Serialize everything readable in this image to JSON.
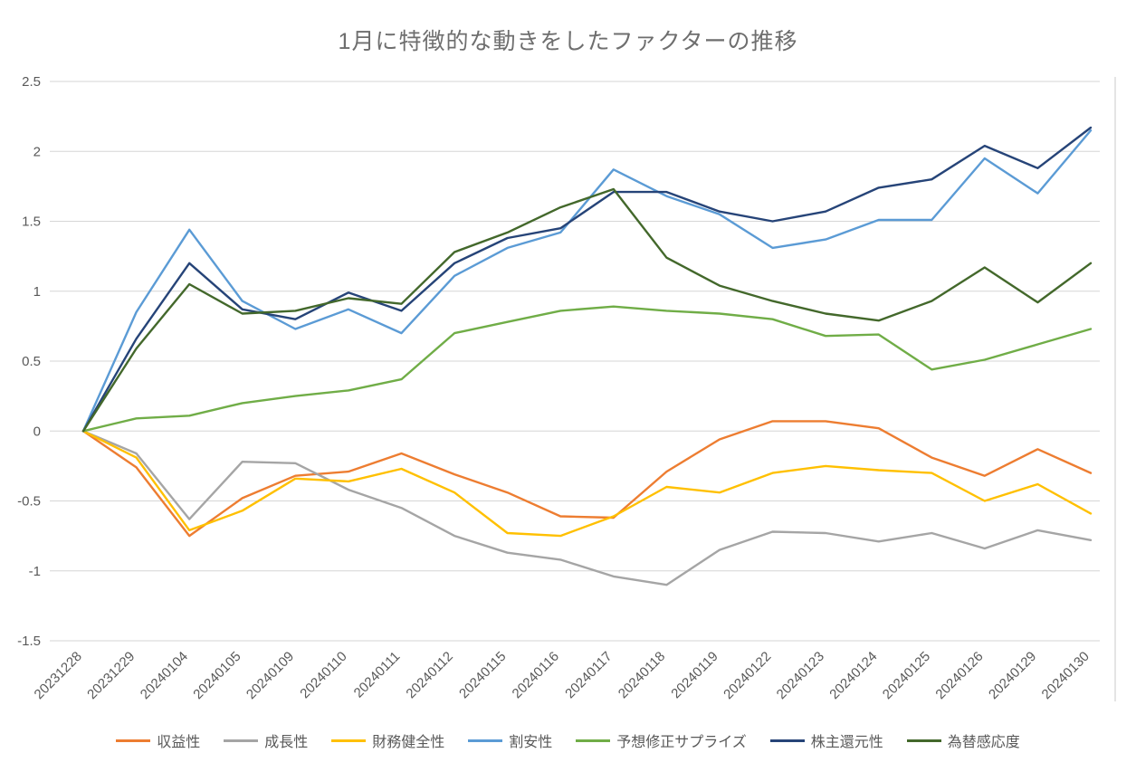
{
  "chart_data": {
    "type": "line",
    "title": "1月に特徴的な動きをしたファクターの推移",
    "grid": "horizontal",
    "legend_position": "bottom",
    "ylim": [
      -1.5,
      2.5
    ],
    "y_ticks": [
      "2.5",
      "2",
      "1.5",
      "1",
      "0.5",
      "0",
      "-0.5",
      "-1",
      "-1.5"
    ],
    "categories": [
      "20231228",
      "20231229",
      "20240104",
      "20240105",
      "20240109",
      "20240110",
      "20240111",
      "20240112",
      "20240115",
      "20240116",
      "20240117",
      "20240118",
      "20240119",
      "20240122",
      "20240123",
      "20240124",
      "20240125",
      "20240126",
      "20240129",
      "20240130"
    ],
    "series": [
      {
        "name": "収益性",
        "id": "profitability",
        "color": "#ED7D31",
        "values": [
          0,
          -0.26,
          -0.75,
          -0.48,
          -0.32,
          -0.29,
          -0.16,
          -0.31,
          -0.44,
          -0.61,
          -0.62,
          -0.29,
          -0.06,
          0.07,
          0.07,
          0.02,
          -0.19,
          -0.32,
          -0.13,
          -0.3
        ]
      },
      {
        "name": "成長性",
        "id": "growth",
        "color": "#A5A5A5",
        "values": [
          0,
          -0.16,
          -0.63,
          -0.22,
          -0.23,
          -0.42,
          -0.55,
          -0.75,
          -0.87,
          -0.92,
          -1.04,
          -1.1,
          -0.85,
          -0.72,
          -0.73,
          -0.79,
          -0.73,
          -0.84,
          -0.71,
          -0.78
        ]
      },
      {
        "name": "財務健全性",
        "id": "financial-soundness",
        "color": "#FFC000",
        "values": [
          0,
          -0.19,
          -0.71,
          -0.57,
          -0.34,
          -0.36,
          -0.27,
          -0.44,
          -0.73,
          -0.75,
          -0.61,
          -0.4,
          -0.44,
          -0.3,
          -0.25,
          -0.28,
          -0.3,
          -0.5,
          -0.38,
          -0.59
        ]
      },
      {
        "name": "割安性",
        "id": "value-factor",
        "color": "#5B9BD5",
        "values": [
          0,
          0.85,
          1.44,
          0.93,
          0.73,
          0.87,
          0.7,
          1.11,
          1.31,
          1.42,
          1.87,
          1.68,
          1.55,
          1.31,
          1.37,
          1.51,
          1.51,
          1.95,
          1.7,
          2.15
        ]
      },
      {
        "name": "予想修正サプライズ",
        "id": "estimate-revision-surprise",
        "color": "#70AD47",
        "values": [
          0,
          0.09,
          0.11,
          0.2,
          0.25,
          0.29,
          0.37,
          0.7,
          0.78,
          0.86,
          0.89,
          0.86,
          0.84,
          0.8,
          0.68,
          0.69,
          0.44,
          0.51,
          0.62,
          0.73
        ]
      },
      {
        "name": "株主還元性",
        "id": "shareholder-return",
        "color": "#264478",
        "values": [
          0,
          0.66,
          1.2,
          0.87,
          0.8,
          0.99,
          0.86,
          1.2,
          1.38,
          1.45,
          1.71,
          1.71,
          1.57,
          1.5,
          1.57,
          1.74,
          1.8,
          2.04,
          1.88,
          2.17
        ]
      },
      {
        "name": "為替感応度",
        "id": "fx-sensitivity",
        "color": "#43682B",
        "values": [
          0,
          0.59,
          1.05,
          0.84,
          0.86,
          0.95,
          0.91,
          1.28,
          1.42,
          1.6,
          1.73,
          1.24,
          1.04,
          0.93,
          0.84,
          0.79,
          0.93,
          1.17,
          0.92,
          1.2
        ]
      }
    ]
  }
}
